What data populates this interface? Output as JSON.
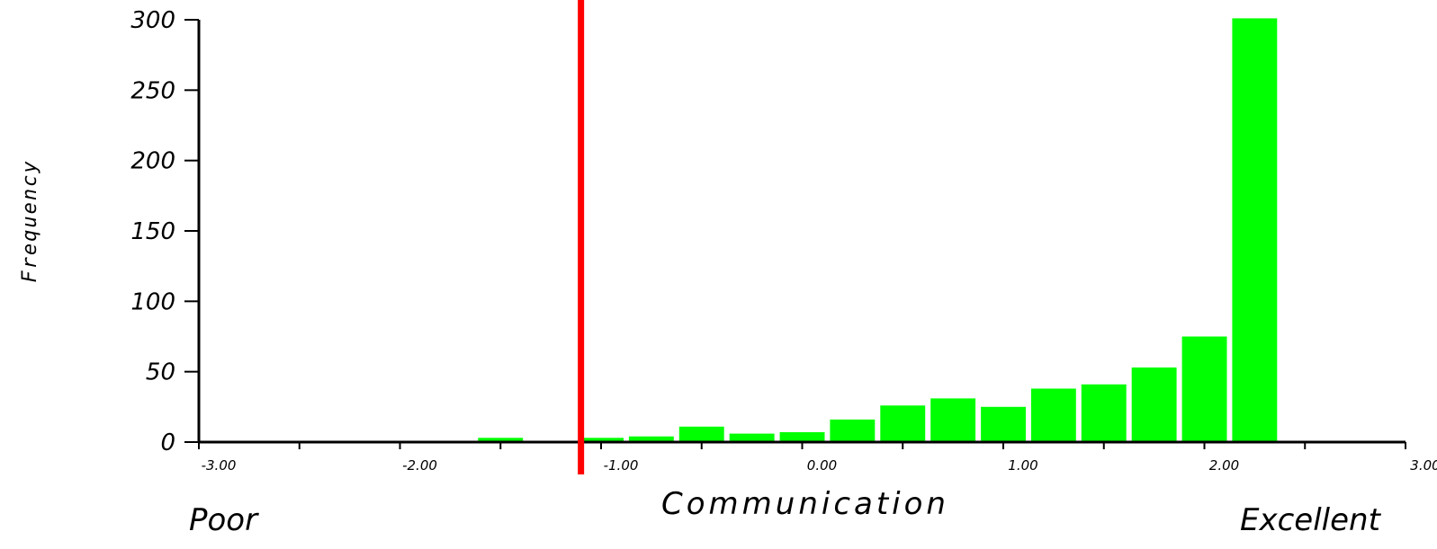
{
  "chart_data": {
    "type": "bar",
    "title": "",
    "xlabel": "Communication",
    "ylabel": "Frequency",
    "low_label": "Poor",
    "high_label": "Excellent",
    "xlim": [
      -3.0,
      3.0
    ],
    "ylim": [
      0,
      300
    ],
    "x_ticks": [
      "-3.00",
      "-2.00",
      "-1.00",
      "0.00",
      "1.00",
      "2.00",
      "3.00"
    ],
    "y_ticks": [
      "0",
      "50",
      "100",
      "150",
      "200",
      "250",
      "300"
    ],
    "bin_width": 0.25,
    "bars": [
      {
        "x": -1.5,
        "value": 3
      },
      {
        "x": -1.0,
        "value": 3
      },
      {
        "x": -0.75,
        "value": 4
      },
      {
        "x": -0.5,
        "value": 11
      },
      {
        "x": -0.25,
        "value": 6
      },
      {
        "x": 0.0,
        "value": 7
      },
      {
        "x": 0.25,
        "value": 16
      },
      {
        "x": 0.5,
        "value": 26
      },
      {
        "x": 0.75,
        "value": 31
      },
      {
        "x": 1.0,
        "value": 25
      },
      {
        "x": 1.25,
        "value": 38
      },
      {
        "x": 1.5,
        "value": 41
      },
      {
        "x": 1.75,
        "value": 53
      },
      {
        "x": 2.0,
        "value": 75
      },
      {
        "x": 2.25,
        "value": 301
      }
    ],
    "reference_line_x": -1.1,
    "colors": {
      "bar": "#00ff00",
      "reference_line": "#ff0000",
      "axis": "#000000"
    },
    "grid": false
  }
}
